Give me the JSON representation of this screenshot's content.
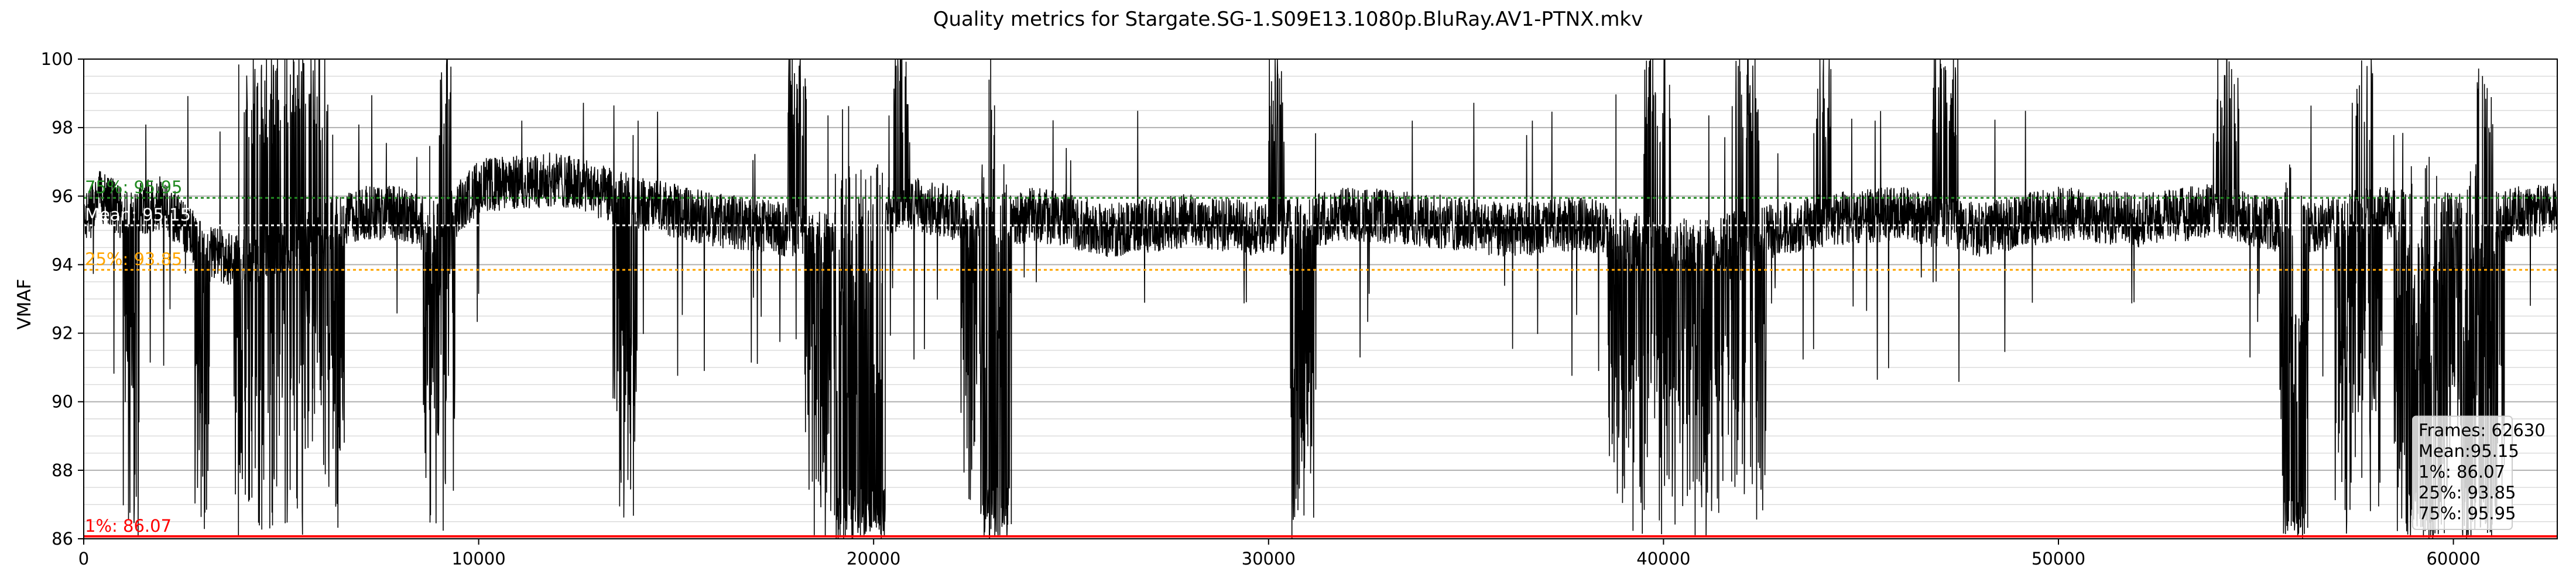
{
  "chart_data": {
    "type": "line",
    "title": "Quality metrics for Stargate.SG-1.S09E13.1080p.BluRay.AV1-PTNX.mkv",
    "xlabel": "",
    "ylabel": "VMAF",
    "xlim": [
      0,
      62630
    ],
    "ylim": [
      86,
      100
    ],
    "x_ticks": [
      0,
      10000,
      20000,
      30000,
      40000,
      50000,
      60000
    ],
    "y_ticks": [
      86,
      88,
      90,
      92,
      94,
      96,
      98,
      100
    ],
    "grid": true,
    "series": [
      {
        "color": "#000000",
        "profile": [
          [
            0,
            95.2
          ],
          [
            400,
            96.0
          ],
          [
            1000,
            95.5
          ],
          [
            2000,
            95.8
          ],
          [
            3000,
            94.5
          ],
          [
            4000,
            94.0
          ],
          [
            5000,
            94.5
          ],
          [
            6000,
            95.0
          ],
          [
            7000,
            95.5
          ],
          [
            8000,
            95.5
          ],
          [
            9000,
            95.0
          ],
          [
            10000,
            96.3
          ],
          [
            12000,
            96.5
          ],
          [
            14000,
            95.8
          ],
          [
            16000,
            95.3
          ],
          [
            18000,
            95.0
          ],
          [
            19000,
            94.8
          ],
          [
            20000,
            95.5
          ],
          [
            21000,
            95.8
          ],
          [
            22000,
            95.5
          ],
          [
            23000,
            95.0
          ],
          [
            24000,
            95.5
          ],
          [
            26000,
            95.0
          ],
          [
            28000,
            95.3
          ],
          [
            30000,
            95.0
          ],
          [
            32000,
            95.5
          ],
          [
            34000,
            95.3
          ],
          [
            36000,
            95.0
          ],
          [
            38000,
            95.2
          ],
          [
            40000,
            94.5
          ],
          [
            42000,
            94.8
          ],
          [
            44000,
            95.3
          ],
          [
            46000,
            95.5
          ],
          [
            48000,
            95.0
          ],
          [
            50000,
            95.5
          ],
          [
            52000,
            95.3
          ],
          [
            54000,
            95.6
          ],
          [
            56000,
            95.0
          ],
          [
            58000,
            95.5
          ],
          [
            60000,
            95.3
          ],
          [
            62630,
            95.6
          ]
        ],
        "dip_regions": [
          [
            1000,
            1400
          ],
          [
            2800,
            3200
          ],
          [
            3800,
            6600
          ],
          [
            8600,
            9400
          ],
          [
            13400,
            14000
          ],
          [
            18200,
            20300
          ],
          [
            22200,
            23500
          ],
          [
            30500,
            31200
          ],
          [
            38600,
            42600
          ],
          [
            55600,
            56400
          ],
          [
            57000,
            58200
          ],
          [
            58500,
            60000
          ],
          [
            60000,
            61300
          ]
        ],
        "peak_regions": [
          [
            3900,
            6200
          ],
          [
            9000,
            9300
          ],
          [
            17800,
            18300
          ],
          [
            20500,
            21000
          ],
          [
            22900,
            23100
          ],
          [
            30000,
            30400
          ],
          [
            39500,
            40200
          ],
          [
            41800,
            42400
          ],
          [
            43800,
            44300
          ],
          [
            46800,
            47500
          ],
          [
            54000,
            54600
          ],
          [
            57500,
            58000
          ],
          [
            60600,
            61000
          ]
        ],
        "dense_regions": [
          [
            19000,
            20300
          ],
          [
            22700,
            23400
          ],
          [
            55700,
            56200
          ],
          [
            58800,
            59700
          ],
          [
            60200,
            61100
          ]
        ]
      }
    ],
    "reference_lines": [
      {
        "label": "75%: 95.95",
        "value": 95.95,
        "color": "#228B22",
        "style": "dotted"
      },
      {
        "label": "Mean: 95.15",
        "value": 95.15,
        "color": "#ffffff",
        "style": "dotted"
      },
      {
        "label": "25%: 93.85",
        "value": 93.85,
        "color": "#FFA500",
        "style": "dotted"
      },
      {
        "label": "1%: 86.07",
        "value": 86.07,
        "color": "#FF0000",
        "style": "solid"
      }
    ],
    "legend": {
      "placement": "bottom-right",
      "lines": [
        "Frames: 62630",
        "Mean:95.15",
        "1%: 86.07",
        "25%: 93.85",
        "75%: 95.95"
      ]
    }
  }
}
